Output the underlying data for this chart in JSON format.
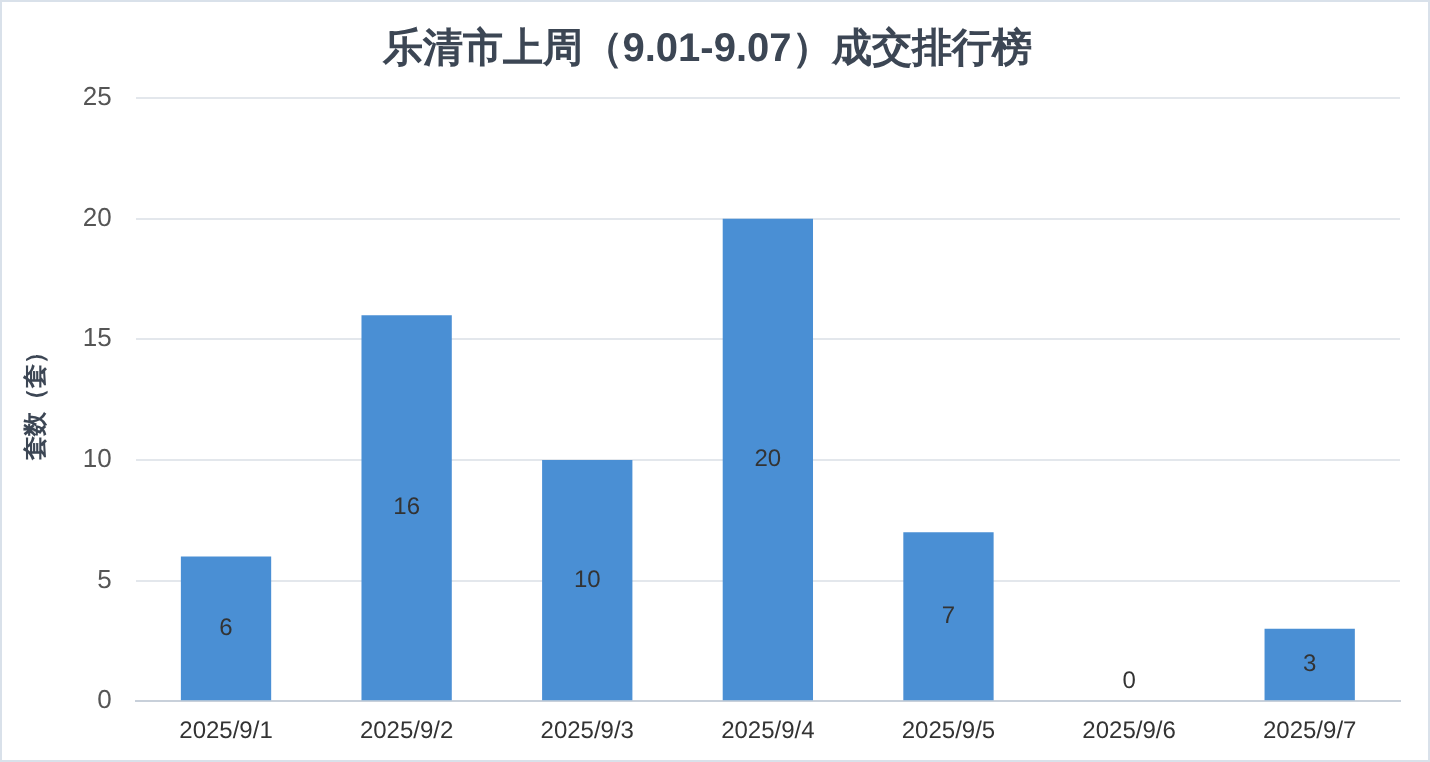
{
  "chart_data": {
    "type": "bar",
    "title": "乐清市上周（9.01-9.07）成交排行榜",
    "ylabel": "套数（套）",
    "categories": [
      "2025/9/1",
      "2025/9/2",
      "2025/9/3",
      "2025/9/4",
      "2025/9/5",
      "2025/9/6",
      "2025/9/7"
    ],
    "values": [
      6,
      16,
      10,
      20,
      7,
      0,
      3
    ],
    "color": "#4a8fd4",
    "ylim": [
      0,
      25
    ],
    "yticks": [
      0,
      5,
      10,
      15,
      20,
      25
    ],
    "grid": "y",
    "data_labels": true
  }
}
